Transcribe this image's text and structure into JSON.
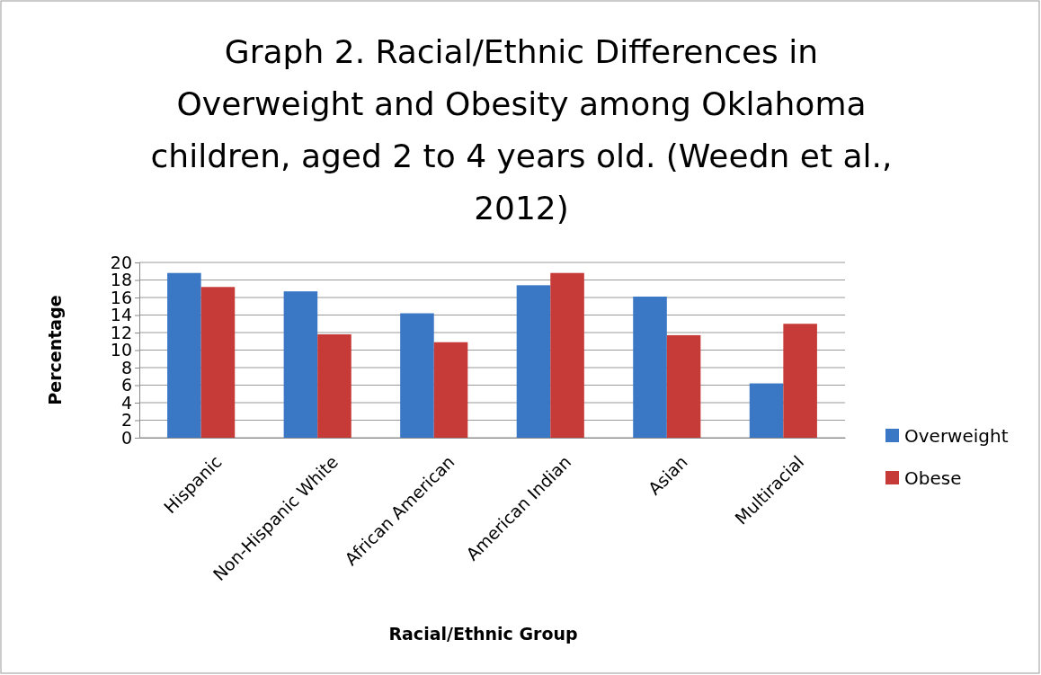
{
  "chart_data": {
    "type": "bar",
    "title": "Graph 2. Racial/Ethnic Differences in Overweight and Obesity among Oklahoma children, aged 2 to 4 years old. (Weedn et al., 2012)",
    "xlabel": "Racial/Ethnic Group",
    "ylabel": "Percentage",
    "categories": [
      "Hispanic",
      "Non-Hispanic White",
      "African American",
      "American Indian",
      "Asian",
      "Multiracial"
    ],
    "series": [
      {
        "name": "Overweight",
        "color": "#3a78c6",
        "values": [
          18.8,
          16.7,
          14.2,
          17.4,
          16.1,
          6.2
        ]
      },
      {
        "name": "Obese",
        "color": "#c63b38",
        "values": [
          17.2,
          11.8,
          10.9,
          18.8,
          11.7,
          13.0
        ]
      }
    ],
    "ylim": [
      0,
      20
    ],
    "yticks": [
      0,
      2,
      4,
      6,
      8,
      10,
      12,
      14,
      16,
      18,
      20
    ],
    "grid": "y",
    "legend": "right"
  }
}
